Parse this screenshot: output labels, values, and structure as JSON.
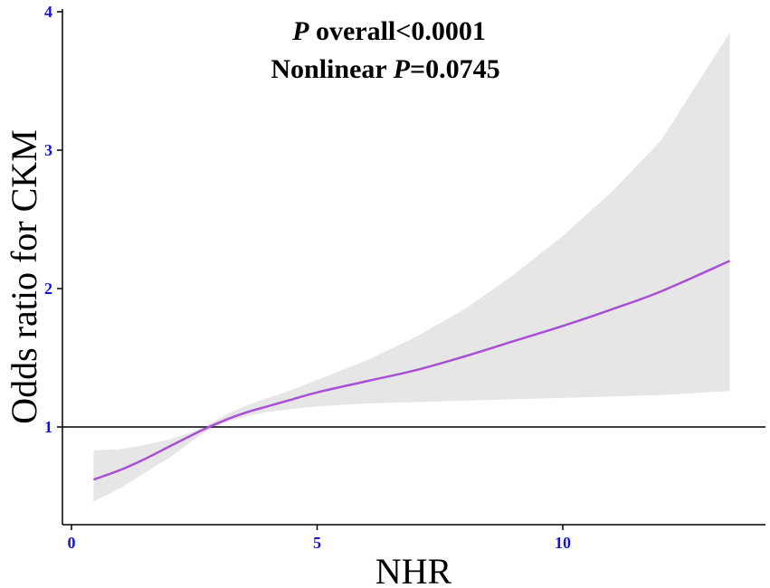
{
  "chart_data": {
    "type": "line",
    "xlabel": "NHR",
    "ylabel": "Odds ratio for CKM",
    "xlim": [
      -0.3,
      14
    ],
    "ylim": [
      0.4,
      4.0
    ],
    "x_ticks": [
      0,
      5,
      10
    ],
    "y_ticks": [
      1,
      2,
      3,
      4
    ],
    "reference_line_y": 1,
    "grid": false,
    "annotations": {
      "line1_italic": "P",
      "line1_rest": " overall<0.0001",
      "line2_prefix": "Nonlinear ",
      "line2_italic": "P",
      "line2_rest": "=0.0745"
    },
    "series": [
      {
        "x": [
          0.45,
          1.0,
          1.5,
          2.0,
          2.5,
          2.8,
          3.2,
          3.6,
          4.0,
          4.5,
          5.0,
          6.0,
          7.0,
          8.0,
          9.0,
          10.0,
          11.0,
          12.0,
          13.4
        ],
        "y": [
          0.62,
          0.69,
          0.77,
          0.86,
          0.95,
          1.0,
          1.06,
          1.11,
          1.15,
          1.2,
          1.25,
          1.33,
          1.41,
          1.51,
          1.62,
          1.73,
          1.85,
          1.98,
          2.2
        ],
        "lower": [
          0.46,
          0.56,
          0.67,
          0.78,
          0.91,
          0.98,
          1.04,
          1.08,
          1.11,
          1.13,
          1.15,
          1.17,
          1.18,
          1.19,
          1.2,
          1.21,
          1.22,
          1.23,
          1.26
        ],
        "upper": [
          0.83,
          0.84,
          0.87,
          0.91,
          0.97,
          1.02,
          1.1,
          1.16,
          1.21,
          1.27,
          1.34,
          1.48,
          1.65,
          1.85,
          2.1,
          2.38,
          2.7,
          3.07,
          3.85
        ]
      }
    ],
    "colors": {
      "line": "#a94fd6",
      "band": "#e6e6e6",
      "tick_labels": "#1414d2"
    }
  }
}
